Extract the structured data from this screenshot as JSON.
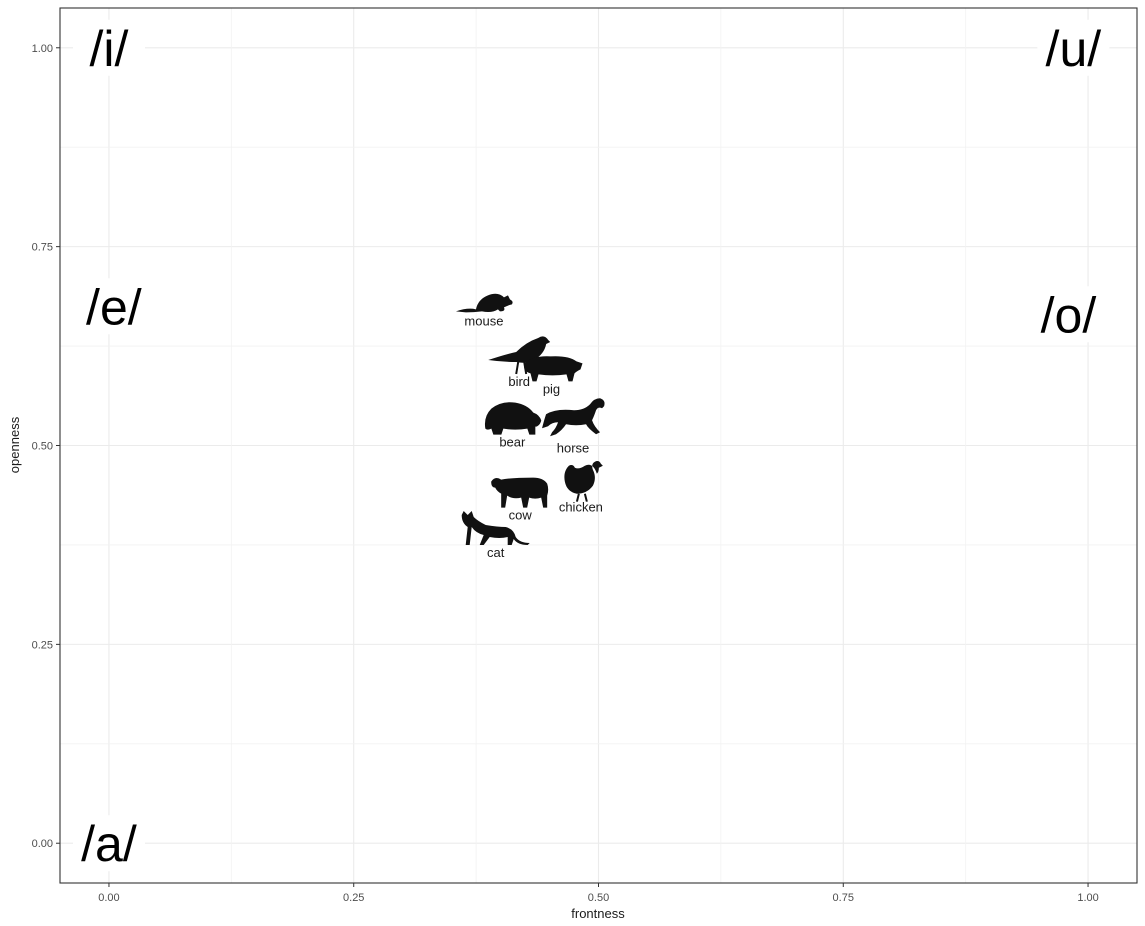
{
  "chart_data": {
    "type": "scatter",
    "xlabel": "frontness",
    "ylabel": "openness",
    "xlim": [
      -0.05,
      1.05
    ],
    "ylim": [
      -0.05,
      1.05
    ],
    "x_ticks": [
      0.0,
      0.25,
      0.5,
      0.75,
      1.0
    ],
    "x_tick_labels": [
      "0.00",
      "0.25",
      "0.50",
      "0.75",
      "1.00"
    ],
    "y_ticks": [
      0.0,
      0.25,
      0.5,
      0.75,
      1.0
    ],
    "y_tick_labels": [
      "0.00",
      "0.25",
      "0.50",
      "0.75",
      "1.00"
    ],
    "grid": true,
    "vowel_labels": [
      {
        "text": "/i/",
        "x": 0.0,
        "y": 1.0
      },
      {
        "text": "/u/",
        "x": 0.985,
        "y": 1.0
      },
      {
        "text": "/e/",
        "x": 0.005,
        "y": 0.675
      },
      {
        "text": "/o/",
        "x": 0.98,
        "y": 0.665
      },
      {
        "text": "/a/",
        "x": 0.0,
        "y": 0.0
      }
    ],
    "points": [
      {
        "label": "mouse",
        "icon": "mouse-icon",
        "x": 0.383,
        "y": 0.68
      },
      {
        "label": "bird",
        "icon": "bird-icon",
        "x": 0.419,
        "y": 0.615
      },
      {
        "label": "pig",
        "icon": "pig-icon",
        "x": 0.452,
        "y": 0.597
      },
      {
        "label": "bear",
        "icon": "bear-icon",
        "x": 0.412,
        "y": 0.535
      },
      {
        "label": "horse",
        "icon": "horse-icon",
        "x": 0.474,
        "y": 0.533
      },
      {
        "label": "chicken",
        "icon": "chicken-icon",
        "x": 0.482,
        "y": 0.457
      },
      {
        "label": "cow",
        "icon": "cow-icon",
        "x": 0.42,
        "y": 0.442
      },
      {
        "label": "cat",
        "icon": "cat-icon",
        "x": 0.395,
        "y": 0.395
      }
    ]
  }
}
